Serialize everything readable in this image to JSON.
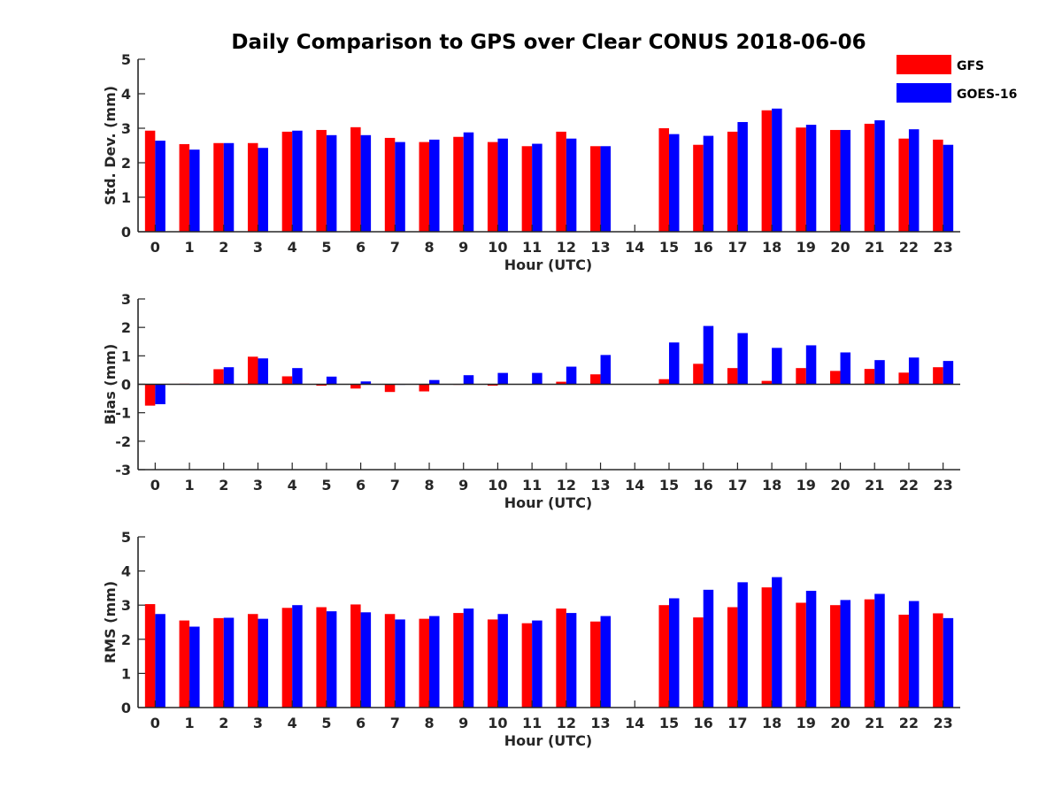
{
  "title": "Daily Comparison to GPS over Clear CONUS 2018-06-06",
  "legend": [
    {
      "label": "GFS",
      "color": "#ff0000"
    },
    {
      "label": "GOES-16",
      "color": "#0000ff"
    }
  ],
  "chart_data": [
    {
      "type": "bar",
      "xlabel": "Hour (UTC)",
      "ylabel": "Std. Dev. (mm)",
      "ylim": [
        0,
        5
      ],
      "yticks": [
        "0",
        "1",
        "2",
        "3",
        "4",
        "5"
      ],
      "categories": [
        "0",
        "1",
        "2",
        "3",
        "4",
        "5",
        "6",
        "7",
        "8",
        "9",
        "10",
        "11",
        "12",
        "13",
        "14",
        "15",
        "16",
        "17",
        "18",
        "19",
        "20",
        "21",
        "22",
        "23"
      ],
      "series": [
        {
          "name": "GFS",
          "color": "#ff0000",
          "values": [
            2.93,
            2.54,
            2.57,
            2.57,
            2.9,
            2.95,
            3.03,
            2.72,
            2.6,
            2.75,
            2.6,
            2.48,
            2.9,
            2.48,
            null,
            3.0,
            2.52,
            2.9,
            3.52,
            3.02,
            2.95,
            3.13,
            2.7,
            2.67
          ]
        },
        {
          "name": "GOES-16",
          "color": "#0000ff",
          "values": [
            2.64,
            2.38,
            2.57,
            2.43,
            2.93,
            2.8,
            2.8,
            2.6,
            2.67,
            2.88,
            2.7,
            2.55,
            2.7,
            2.48,
            null,
            2.83,
            2.78,
            3.18,
            3.57,
            3.1,
            2.95,
            3.23,
            2.97,
            2.52
          ]
        }
      ]
    },
    {
      "type": "bar",
      "xlabel": "Hour (UTC)",
      "ylabel": "Bias (mm)",
      "ylim": [
        -3,
        3
      ],
      "yticks": [
        "-3",
        "-2",
        "-1",
        "0",
        "1",
        "2",
        "3"
      ],
      "categories": [
        "0",
        "1",
        "2",
        "3",
        "4",
        "5",
        "6",
        "7",
        "8",
        "9",
        "10",
        "11",
        "12",
        "13",
        "14",
        "15",
        "16",
        "17",
        "18",
        "19",
        "20",
        "21",
        "22",
        "23"
      ],
      "series": [
        {
          "name": "GFS",
          "color": "#ff0000",
          "values": [
            -0.75,
            0.02,
            0.53,
            0.97,
            0.28,
            -0.05,
            -0.15,
            -0.27,
            -0.25,
            -0.02,
            -0.05,
            0.01,
            0.09,
            0.35,
            null,
            0.18,
            0.72,
            0.57,
            0.12,
            0.57,
            0.47,
            0.54,
            0.41,
            0.6
          ]
        },
        {
          "name": "GOES-16",
          "color": "#0000ff",
          "values": [
            -0.7,
            0.0,
            0.6,
            0.91,
            0.57,
            0.27,
            0.1,
            0.0,
            0.15,
            0.32,
            0.4,
            0.4,
            0.62,
            1.03,
            null,
            1.47,
            2.05,
            1.8,
            1.28,
            1.37,
            1.12,
            0.85,
            0.94,
            0.82
          ]
        }
      ]
    },
    {
      "type": "bar",
      "xlabel": "Hour (UTC)",
      "ylabel": "RMS (mm)",
      "ylim": [
        0,
        5
      ],
      "yticks": [
        "0",
        "1",
        "2",
        "3",
        "4",
        "5"
      ],
      "categories": [
        "0",
        "1",
        "2",
        "3",
        "4",
        "5",
        "6",
        "7",
        "8",
        "9",
        "10",
        "11",
        "12",
        "13",
        "14",
        "15",
        "16",
        "17",
        "18",
        "19",
        "20",
        "21",
        "22",
        "23"
      ],
      "series": [
        {
          "name": "GFS",
          "color": "#ff0000",
          "values": [
            3.03,
            2.55,
            2.62,
            2.74,
            2.92,
            2.94,
            3.02,
            2.74,
            2.6,
            2.77,
            2.58,
            2.47,
            2.9,
            2.52,
            null,
            3.0,
            2.64,
            2.94,
            3.52,
            3.07,
            3.0,
            3.17,
            2.72,
            2.76
          ]
        },
        {
          "name": "GOES-16",
          "color": "#0000ff",
          "values": [
            2.74,
            2.37,
            2.63,
            2.6,
            3.0,
            2.82,
            2.79,
            2.58,
            2.68,
            2.9,
            2.74,
            2.55,
            2.77,
            2.68,
            null,
            3.2,
            3.45,
            3.67,
            3.82,
            3.42,
            3.15,
            3.33,
            3.12,
            2.62
          ]
        }
      ]
    }
  ]
}
